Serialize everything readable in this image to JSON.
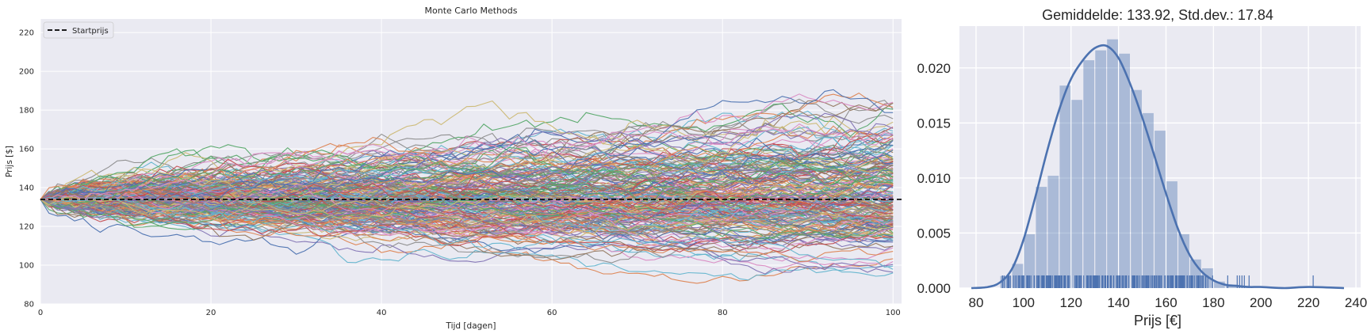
{
  "chart_data": [
    {
      "type": "line",
      "title": "Monte Carlo Methods",
      "xlabel": "Tijd [dagen]",
      "ylabel": "Prijs [$]",
      "xlim": [
        0,
        101
      ],
      "ylim": [
        80,
        227
      ],
      "xticks": [
        "0",
        "20",
        "40",
        "60",
        "80",
        "100"
      ],
      "yticks": [
        "80",
        "100",
        "120",
        "140",
        "160",
        "180",
        "200",
        "220"
      ],
      "grid": true,
      "legend": {
        "placement": "top-left",
        "entries": [
          "Startprijs"
        ]
      },
      "start_price": 133.92,
      "reference_line": {
        "name": "Startprijs",
        "y": 133.92,
        "style": "dashed",
        "color": "#000000"
      },
      "n_days": 100,
      "simulated_paths": "many",
      "series_colors": [
        "#4c72b0",
        "#dd8452",
        "#55a868",
        "#c44e52",
        "#8172b3",
        "#937860",
        "#da8bc3",
        "#8c8c8c",
        "#ccb974",
        "#64b5cd"
      ]
    },
    {
      "type": "bar",
      "title": "Gemiddelde: 133.92, Std.dev.: 17.84",
      "xlabel": "Prijs [€]",
      "ylabel": "",
      "xlim": [
        73,
        242
      ],
      "ylim": [
        0,
        0.0238
      ],
      "xticks": [
        "80",
        "100",
        "120",
        "140",
        "160",
        "180",
        "200",
        "220",
        "240"
      ],
      "yticks": [
        "0.000",
        "0.005",
        "0.010",
        "0.015",
        "0.020"
      ],
      "grid": true,
      "bin_edges": [
        90,
        95,
        100,
        105,
        110,
        115,
        120,
        125,
        130,
        135,
        140,
        145,
        150,
        155,
        160,
        165,
        170,
        175,
        180,
        185,
        190,
        195
      ],
      "density": [
        0.0011,
        0.0022,
        0.0049,
        0.0092,
        0.0102,
        0.0184,
        0.0171,
        0.0207,
        0.0216,
        0.0226,
        0.0213,
        0.018,
        0.0159,
        0.0143,
        0.0097,
        0.0049,
        0.0026,
        0.0018,
        0.0006,
        0.0003,
        0.0002
      ],
      "kde_x": [
        78,
        85,
        90,
        95,
        100,
        105,
        110,
        115,
        120,
        125,
        130,
        135,
        140,
        145,
        150,
        155,
        160,
        165,
        170,
        175,
        180,
        185,
        190,
        195,
        200,
        210,
        220,
        235
      ],
      "kde_y": [
        0.0,
        0.0001,
        0.0005,
        0.0017,
        0.0044,
        0.0083,
        0.0125,
        0.0162,
        0.019,
        0.0207,
        0.0218,
        0.022,
        0.0209,
        0.0185,
        0.0155,
        0.0121,
        0.0086,
        0.0054,
        0.003,
        0.0015,
        0.0007,
        0.0003,
        0.0002,
        0.0001,
        0.0001,
        0.0,
        0.0001,
        0.0
      ],
      "rug_outliers": [
        186,
        190,
        191,
        192,
        193,
        195,
        222
      ],
      "bar_color": "#4c72b0",
      "kde_color": "#4c72b0"
    }
  ]
}
